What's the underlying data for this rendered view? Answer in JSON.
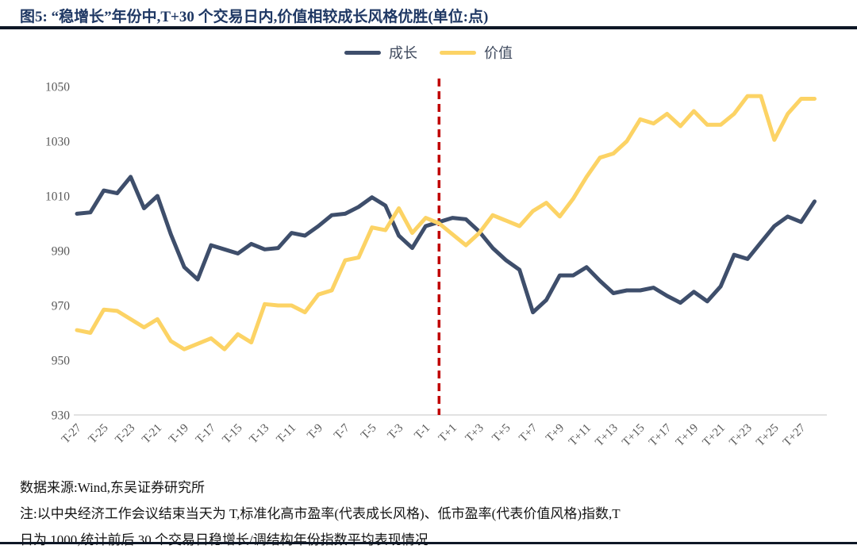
{
  "header": {
    "title": "图5:  “稳增长”年份中,T+30 个交易日内,价值相较成长风格优胜(单位:点)"
  },
  "footer": {
    "source_line": "数据来源:Wind,东吴证券研究所",
    "note_line1": "注:以中央经济工作会议结束当天为 T,标准化高市盈率(代表成长风格)、低市盈率(代表价值风格)指数,T",
    "note_line2": "日为 1000,统计前后 30 个交易日稳增长/调结构年份指数平均表现情况"
  },
  "colors": {
    "title_text": "#1F3864",
    "divider": "#0E1726",
    "axis_text": "#595959",
    "axis_line": "#D9D9D9",
    "growth_line": "#3E4E6B",
    "value_line": "#FCD365",
    "event_marker": "#C00000"
  },
  "chart_data": {
    "type": "line",
    "title": "“稳增长”年份中,T+30 个交易日内,价值相较成长风格优胜",
    "unit": "点",
    "categories": [
      "T-27",
      "T-26",
      "T-25",
      "T-24",
      "T-23",
      "T-22",
      "T-21",
      "T-20",
      "T-19",
      "T-18",
      "T-17",
      "T-16",
      "T-15",
      "T-14",
      "T-13",
      "T-12",
      "T-11",
      "T-10",
      "T-9",
      "T-8",
      "T-7",
      "T-6",
      "T-5",
      "T-4",
      "T-3",
      "T-2",
      "T-1",
      "T",
      "T+1",
      "T+2",
      "T+3",
      "T+4",
      "T+5",
      "T+6",
      "T+7",
      "T+8",
      "T+9",
      "T+10",
      "T+11",
      "T+12",
      "T+13",
      "T+14",
      "T+15",
      "T+16",
      "T+17",
      "T+18",
      "T+19",
      "T+20",
      "T+21",
      "T+22",
      "T+23",
      "T+24",
      "T+25",
      "T+26",
      "T+27",
      "T+28"
    ],
    "x_tick_labels_shown": [
      "T-27",
      "T-25",
      "T-23",
      "T-21",
      "T-19",
      "T-17",
      "T-15",
      "T-13",
      "T-11",
      "T-9",
      "T-7",
      "T-5",
      "T-3",
      "T-1",
      "T+1",
      "T+3",
      "T+5",
      "T+7",
      "T+9",
      "T+11",
      "T+13",
      "T+15",
      "T+17",
      "T+19",
      "T+21",
      "T+23",
      "T+25",
      "T+27"
    ],
    "y_ticks": [
      930,
      950,
      970,
      990,
      1010,
      1030,
      1050
    ],
    "ylim": [
      930,
      1050
    ],
    "grid": false,
    "legend_position": "top-center",
    "event_marker": {
      "at_category": "T",
      "style": "dashed",
      "color": "#C00000"
    },
    "series": [
      {
        "name": "成长",
        "color": "#3E4E6B",
        "values": [
          1003.5,
          1004,
          1012,
          1011,
          1017,
          1005.5,
          1010,
          996,
          984,
          979.5,
          992,
          990.5,
          989,
          992.5,
          990.5,
          991,
          996.5,
          995.5,
          999,
          1003,
          1003.5,
          1006,
          1009.5,
          1006.5,
          995.5,
          991,
          999,
          1000.5,
          1002,
          1001.5,
          997,
          991,
          986.5,
          983,
          967.5,
          972,
          981,
          981,
          984,
          979,
          974.5,
          975.5,
          975.5,
          976.5,
          973.5,
          971,
          975,
          971.5,
          977,
          988.5,
          987,
          993,
          999,
          1002.5,
          1000.5,
          1008
        ]
      },
      {
        "name": "价值",
        "color": "#FCD365",
        "values": [
          961,
          960,
          968.5,
          968,
          965,
          962,
          965,
          957,
          954,
          956,
          958,
          954,
          959.5,
          956.5,
          970.5,
          970,
          970,
          967.5,
          974,
          975.5,
          986.5,
          987.5,
          998.5,
          997.5,
          1005.5,
          996.5,
          1002,
          1000,
          996,
          992,
          996.5,
          1003,
          1001,
          999,
          1004.5,
          1007.5,
          1002.5,
          1009,
          1017,
          1024,
          1025.5,
          1030,
          1038,
          1036.5,
          1040,
          1035.5,
          1041,
          1036,
          1036,
          1040,
          1046.5,
          1046.5,
          1030.5,
          1040,
          1045.5,
          1045.5
        ]
      }
    ]
  }
}
